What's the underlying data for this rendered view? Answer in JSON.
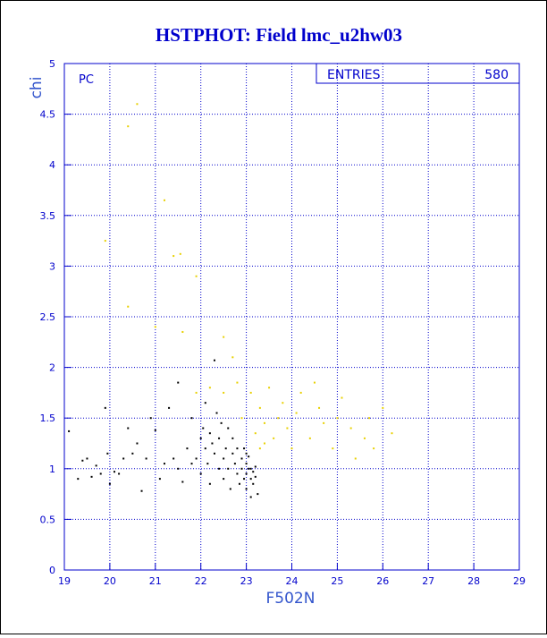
{
  "chart_data": {
    "type": "scatter",
    "title": "HSTPHOT: Field lmc_u2hw03",
    "x_label": "F502N",
    "y_label": "chi",
    "annotation": "PC",
    "stats": {
      "label": "ENTRIES",
      "value": "580"
    },
    "xlim": [
      19,
      29
    ],
    "ylim": [
      0,
      5
    ],
    "xticks": [
      19,
      20,
      21,
      22,
      23,
      24,
      25,
      26,
      27,
      28,
      29
    ],
    "yticks": [
      0,
      0.5,
      1,
      1.5,
      2,
      2.5,
      3,
      3.5,
      4,
      4.5,
      5
    ],
    "grid": true,
    "series": [
      {
        "color": "#000000",
        "x": [
          19.1,
          19.3,
          19.4,
          19.5,
          19.6,
          19.7,
          19.8,
          19.9,
          19.95,
          20.0,
          20.1,
          20.2,
          20.3,
          20.4,
          20.5,
          20.6,
          20.7,
          20.8,
          20.9,
          21.0,
          21.1,
          21.2,
          21.3,
          21.4,
          21.5,
          21.5,
          21.6,
          21.7,
          21.8,
          21.8,
          21.9,
          22.0,
          22.0,
          22.05,
          22.1,
          22.1,
          22.15,
          22.2,
          22.2,
          22.25,
          22.3,
          22.3,
          22.35,
          22.4,
          22.4,
          22.45,
          22.5,
          22.5,
          22.55,
          22.6,
          22.6,
          22.65,
          22.7,
          22.7,
          22.75,
          22.8,
          22.8,
          22.85,
          22.9,
          22.9,
          22.95,
          23.0,
          23.0,
          23.0,
          23.05,
          23.05,
          23.1,
          23.1,
          23.15,
          23.15,
          23.2,
          23.2,
          23.25,
          23.1,
          22.95,
          23.0
        ],
        "values": [
          1.37,
          0.9,
          1.08,
          1.1,
          0.92,
          1.03,
          0.95,
          1.6,
          1.15,
          0.85,
          0.97,
          0.95,
          1.1,
          1.4,
          1.15,
          1.25,
          0.78,
          1.1,
          1.5,
          1.38,
          0.9,
          1.05,
          1.6,
          1.1,
          1.85,
          1.0,
          0.87,
          1.2,
          1.05,
          1.5,
          1.1,
          1.3,
          0.95,
          1.4,
          1.2,
          1.65,
          1.05,
          1.35,
          0.85,
          1.25,
          2.07,
          1.15,
          1.55,
          1.0,
          1.3,
          1.45,
          1.1,
          0.9,
          1.2,
          1.4,
          1.0,
          0.8,
          1.15,
          1.3,
          1.05,
          0.95,
          1.2,
          0.85,
          1.0,
          1.1,
          0.9,
          1.05,
          0.95,
          0.8,
          1.0,
          1.12,
          0.9,
          1.0,
          0.85,
          0.97,
          1.02,
          0.92,
          0.75,
          0.72,
          1.2,
          1.15
        ]
      },
      {
        "color": "#e8d000",
        "x": [
          19.9,
          20.4,
          20.6,
          20.4,
          21.0,
          21.2,
          21.4,
          21.55,
          21.6,
          21.9,
          22.5,
          22.7,
          21.9,
          22.2,
          22.5,
          22.8,
          23.1,
          23.3,
          23.4,
          23.5,
          23.6,
          23.7,
          23.8,
          23.9,
          24.0,
          24.1,
          24.2,
          24.4,
          24.5,
          24.6,
          24.7,
          24.9,
          25.0,
          25.1,
          25.3,
          25.4,
          25.6,
          25.7,
          25.8,
          26.0,
          26.2,
          23.2,
          23.4,
          22.9,
          23.3
        ],
        "values": [
          3.25,
          4.38,
          4.6,
          2.6,
          2.4,
          3.65,
          3.1,
          3.12,
          2.35,
          2.9,
          2.3,
          2.1,
          1.75,
          1.8,
          1.75,
          1.85,
          1.75,
          1.6,
          1.45,
          1.8,
          1.3,
          1.5,
          1.65,
          1.4,
          1.2,
          1.55,
          1.75,
          1.3,
          1.85,
          1.6,
          1.45,
          1.2,
          1.5,
          1.7,
          1.4,
          1.1,
          1.3,
          1.5,
          1.2,
          1.6,
          1.35,
          1.35,
          1.25,
          1.5,
          1.2
        ]
      }
    ]
  }
}
